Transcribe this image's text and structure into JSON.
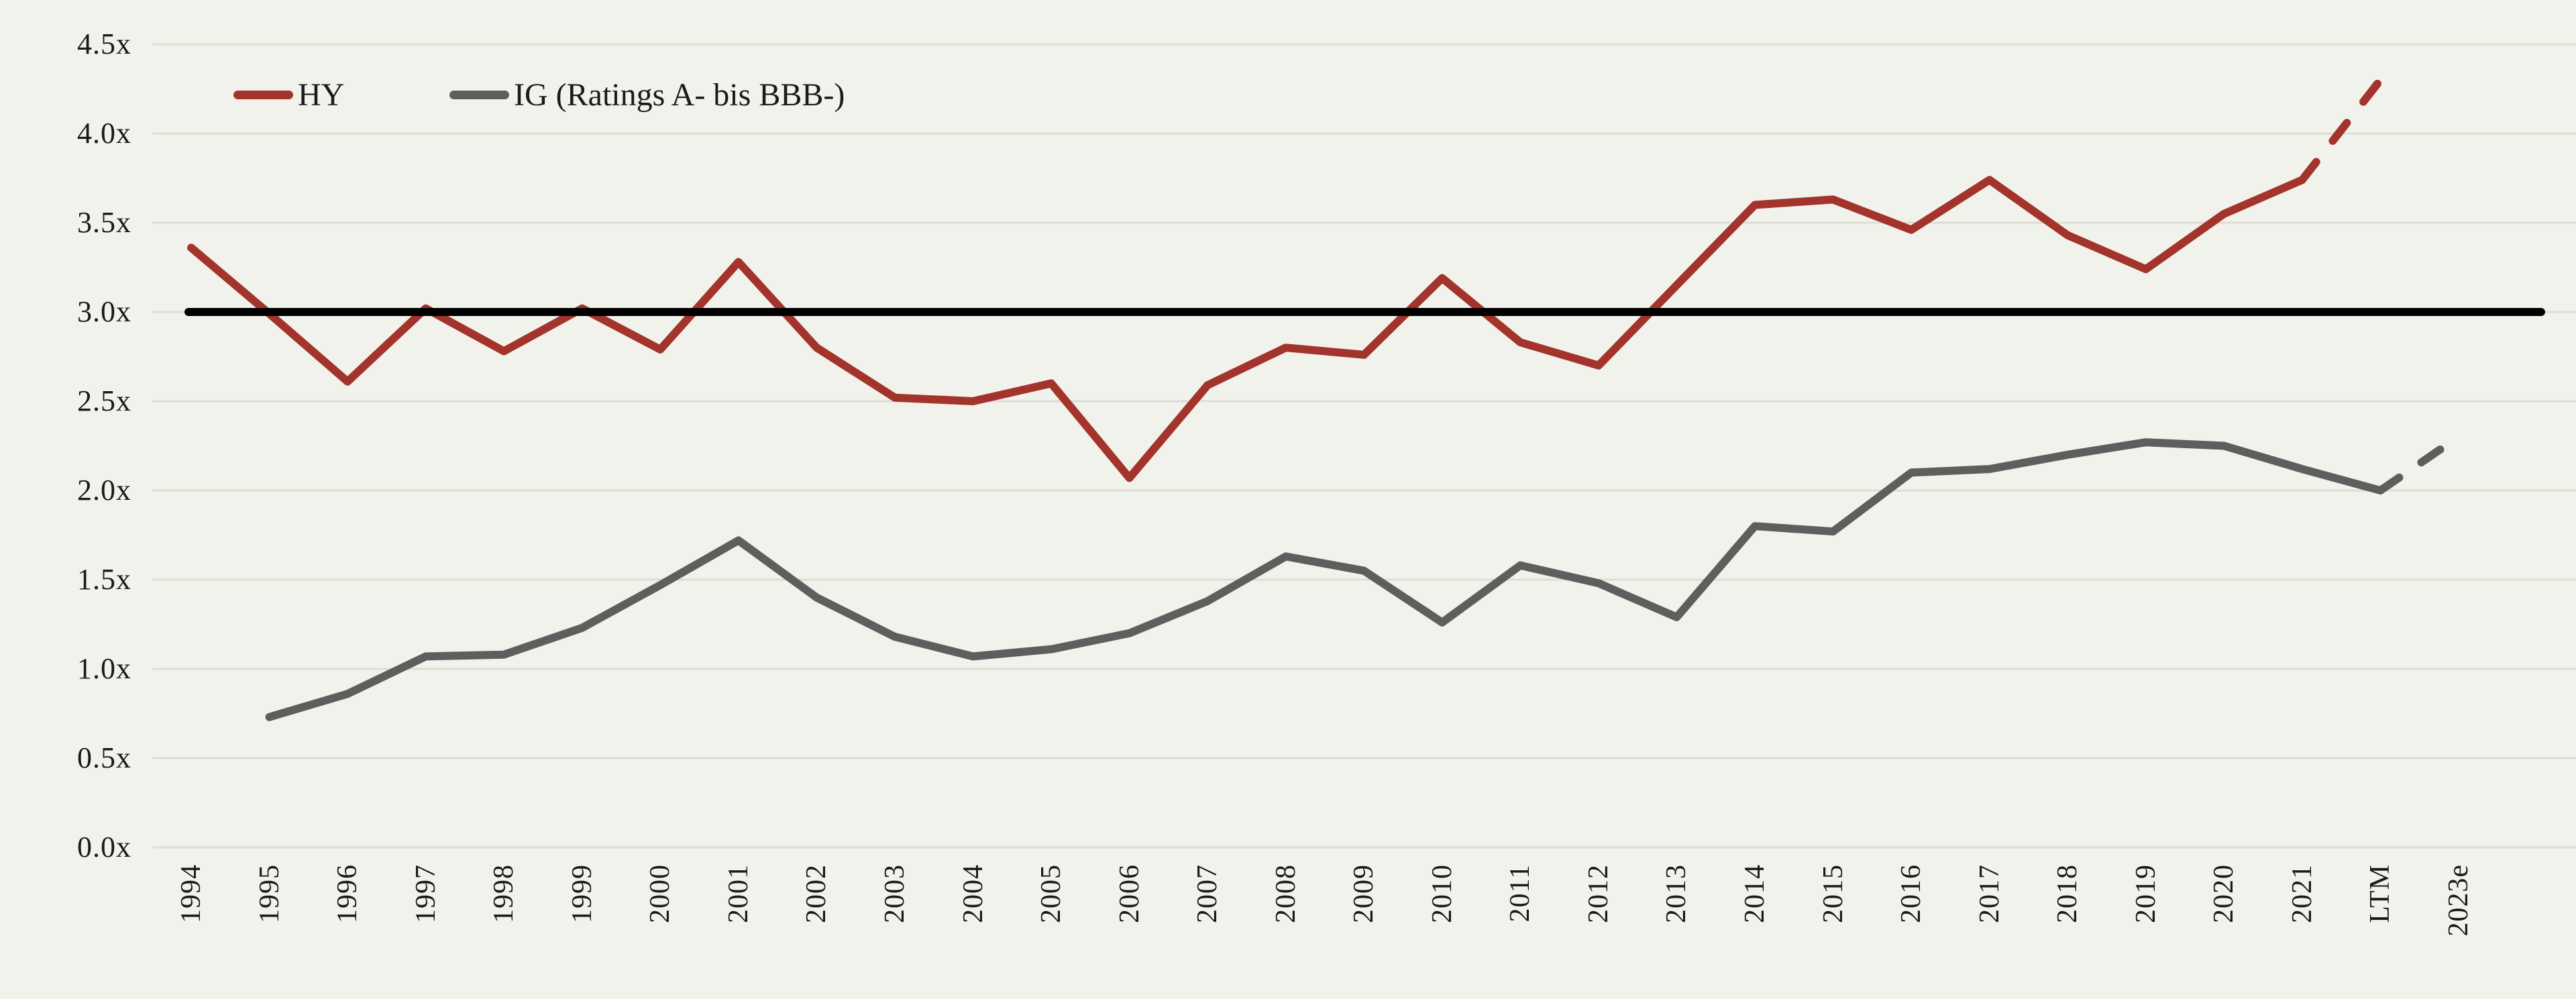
{
  "chart_data": {
    "type": "line",
    "title": "",
    "xlabel": "",
    "ylabel": "",
    "categories": [
      "1994",
      "1995",
      "1996",
      "1997",
      "1998",
      "1999",
      "2000",
      "2001",
      "2002",
      "2003",
      "2004",
      "2005",
      "2006",
      "2007",
      "2008",
      "2009",
      "2010",
      "2011",
      "2012",
      "2013",
      "2014",
      "2015",
      "2016",
      "2017",
      "2018",
      "2019",
      "2020",
      "2021",
      "LTM",
      "2023e"
    ],
    "series": [
      {
        "name": "HY",
        "color": "#A3342B",
        "values": [
          3.36,
          2.99,
          2.61,
          3.02,
          2.78,
          3.02,
          2.79,
          3.28,
          2.8,
          2.52,
          2.5,
          2.6,
          2.07,
          2.59,
          2.8,
          2.76,
          3.19,
          2.83,
          2.7,
          3.15,
          3.6,
          3.63,
          3.46,
          3.74,
          3.43,
          3.24,
          3.55,
          3.74,
          4.3,
          null
        ],
        "dashed_from_index": 27
      },
      {
        "name": "IG (Ratings A- bis BBB-)",
        "color": "#5D5E5E",
        "values": [
          null,
          0.73,
          0.86,
          1.07,
          1.08,
          1.23,
          1.47,
          1.72,
          1.4,
          1.18,
          1.07,
          1.11,
          1.2,
          1.38,
          1.63,
          1.55,
          1.26,
          1.58,
          1.48,
          1.29,
          1.8,
          1.77,
          2.1,
          2.12,
          2.2,
          2.27,
          2.25,
          2.12,
          2.0,
          2.3
        ],
        "dashed_from_index": 28
      }
    ],
    "y_axis": {
      "min": 0,
      "max": 4.5,
      "step": 0.5,
      "tick_labels": [
        "0.0x",
        "0.5x",
        "1.0x",
        "1.5x",
        "2.0x",
        "2.5x",
        "3.0x",
        "3.5x",
        "4.0x",
        "4.5x"
      ]
    },
    "reference_line": {
      "value": 3.0,
      "color": "#000000"
    },
    "grid": true,
    "legend_position": "top-left",
    "background_color": "#F2F2EC",
    "gridline_color": "#DDDDD6"
  }
}
